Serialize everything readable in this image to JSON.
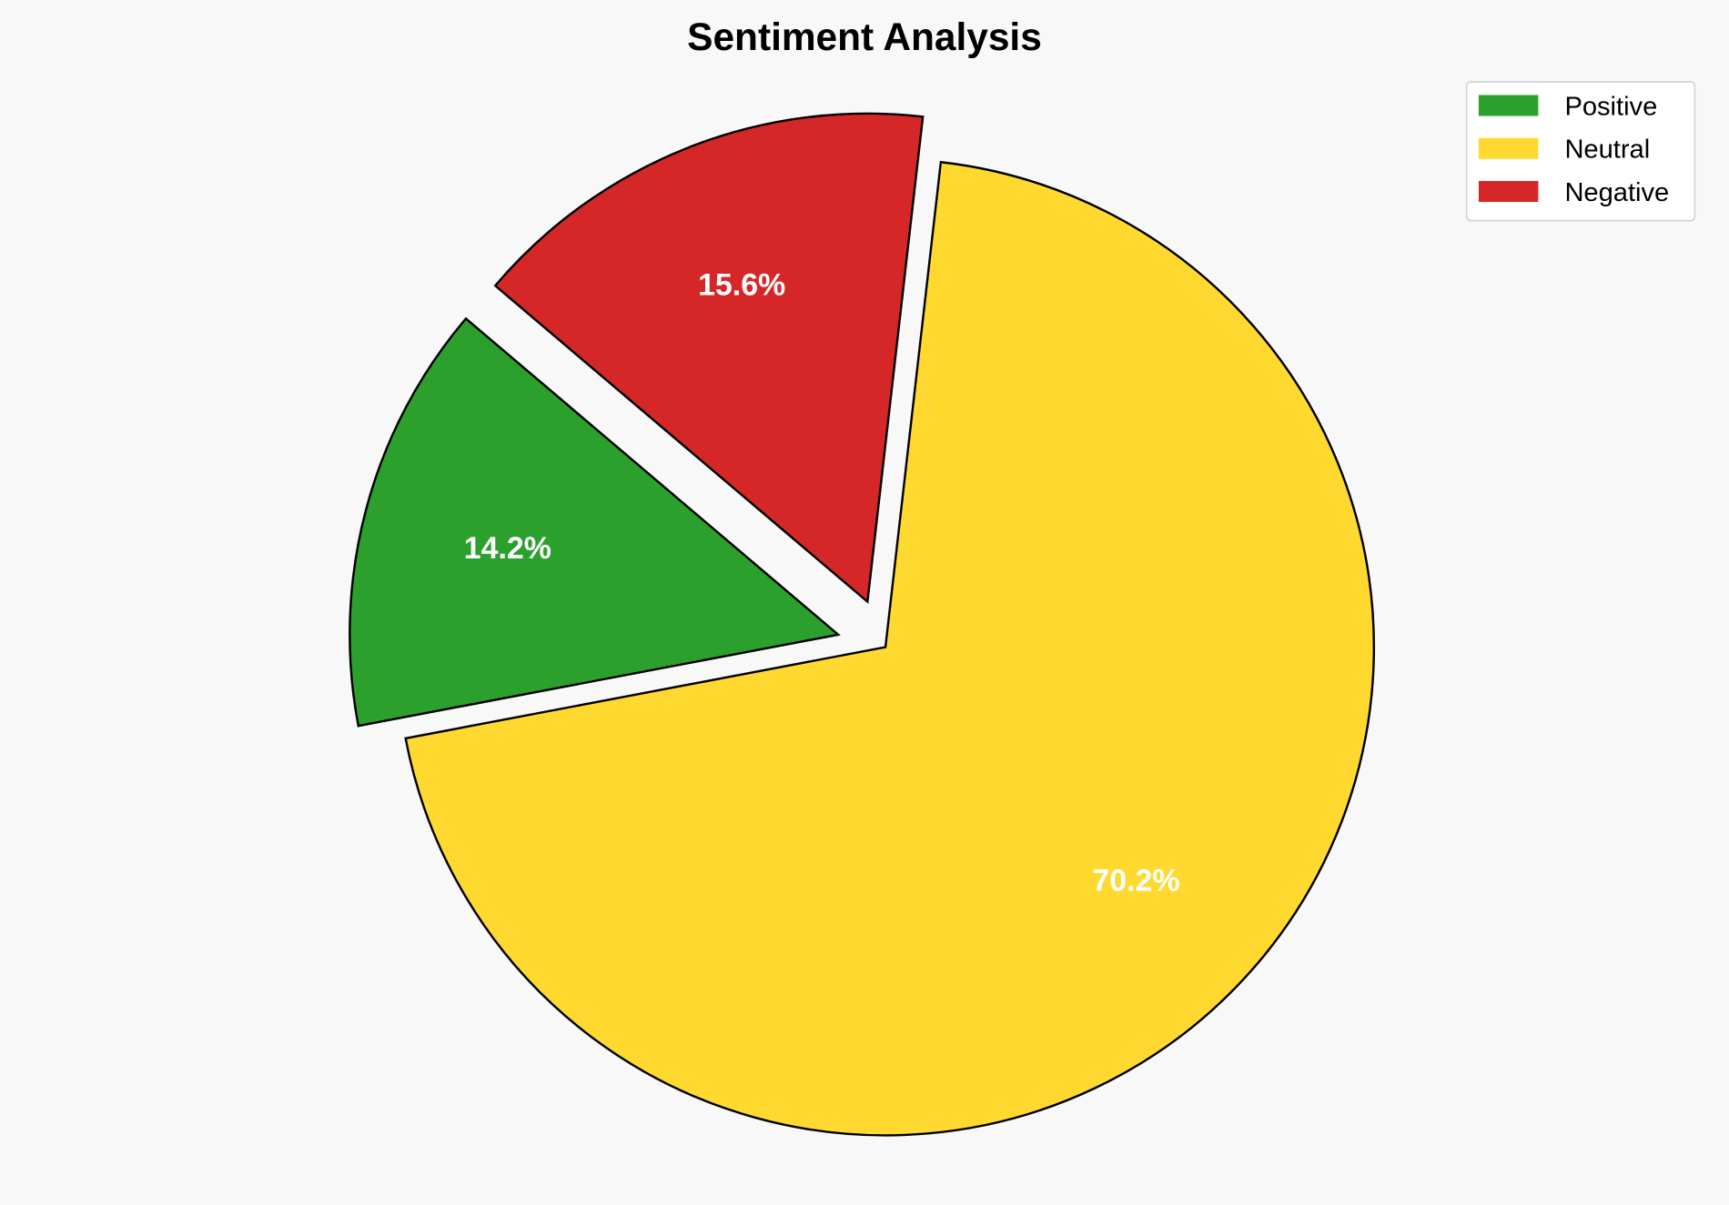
{
  "chart_data": {
    "type": "pie",
    "title": "Sentiment Analysis",
    "categories": [
      "Positive",
      "Neutral",
      "Negative"
    ],
    "values": [
      14.2,
      70.2,
      15.6
    ],
    "labels": [
      "14.2%",
      "70.2%",
      "15.6%"
    ],
    "colors": [
      "#2ca02c",
      "#ffd92f",
      "#d62728"
    ],
    "exploded": [
      "Positive",
      "Negative"
    ],
    "legend": {
      "placement": "top-right",
      "entries": [
        "Positive",
        "Neutral",
        "Negative"
      ]
    }
  }
}
